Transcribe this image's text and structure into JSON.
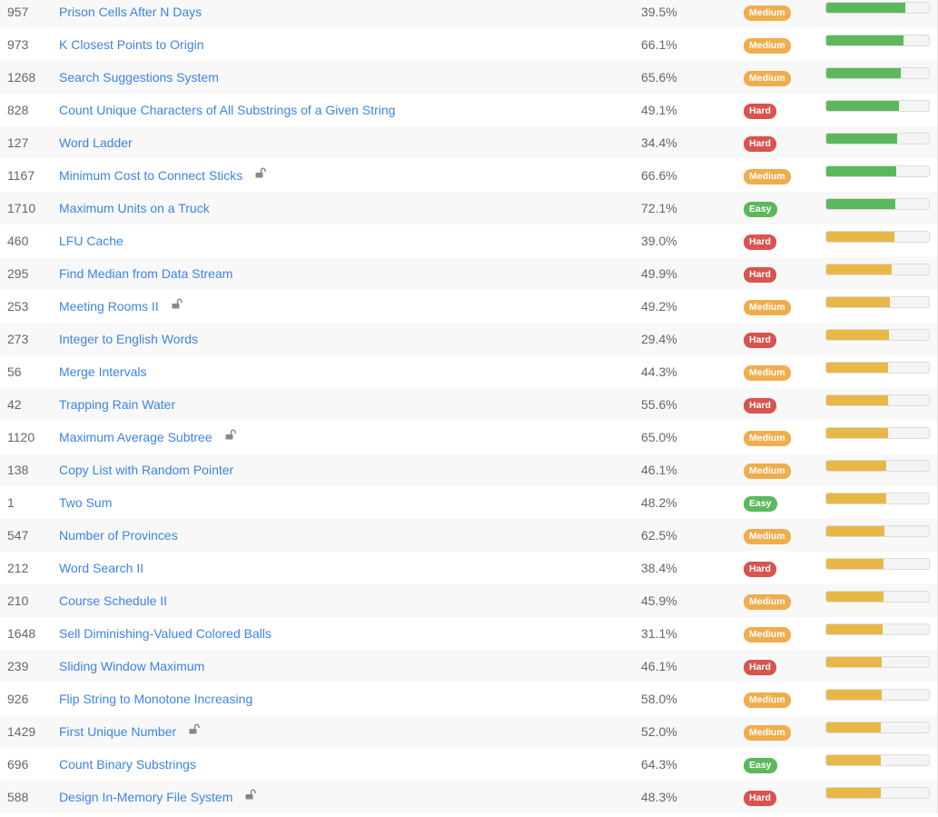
{
  "colors": {
    "easy": "#5cb85c",
    "medium": "#f0ad4e",
    "hard": "#d9534f",
    "freq_high": "#5cb85c",
    "freq_mid": "#e8b847"
  },
  "rows": [
    {
      "id": "957",
      "title": "Prison Cells After N Days",
      "locked": false,
      "acceptance": "39.5%",
      "difficulty": "Medium",
      "frequency": 0.77,
      "freq_color": "freq_high"
    },
    {
      "id": "973",
      "title": "K Closest Points to Origin",
      "locked": false,
      "acceptance": "66.1%",
      "difficulty": "Medium",
      "frequency": 0.75,
      "freq_color": "freq_high"
    },
    {
      "id": "1268",
      "title": "Search Suggestions System",
      "locked": false,
      "acceptance": "65.6%",
      "difficulty": "Medium",
      "frequency": 0.73,
      "freq_color": "freq_high"
    },
    {
      "id": "828",
      "title": "Count Unique Characters of All Substrings of a Given String",
      "locked": false,
      "acceptance": "49.1%",
      "difficulty": "Hard",
      "frequency": 0.71,
      "freq_color": "freq_high"
    },
    {
      "id": "127",
      "title": "Word Ladder",
      "locked": false,
      "acceptance": "34.4%",
      "difficulty": "Hard",
      "frequency": 0.69,
      "freq_color": "freq_high"
    },
    {
      "id": "1167",
      "title": "Minimum Cost to Connect Sticks",
      "locked": true,
      "acceptance": "66.6%",
      "difficulty": "Medium",
      "frequency": 0.68,
      "freq_color": "freq_high"
    },
    {
      "id": "1710",
      "title": "Maximum Units on a Truck",
      "locked": false,
      "acceptance": "72.1%",
      "difficulty": "Easy",
      "frequency": 0.67,
      "freq_color": "freq_high"
    },
    {
      "id": "460",
      "title": "LFU Cache",
      "locked": false,
      "acceptance": "39.0%",
      "difficulty": "Hard",
      "frequency": 0.66,
      "freq_color": "freq_mid"
    },
    {
      "id": "295",
      "title": "Find Median from Data Stream",
      "locked": false,
      "acceptance": "49.9%",
      "difficulty": "Hard",
      "frequency": 0.64,
      "freq_color": "freq_mid"
    },
    {
      "id": "253",
      "title": "Meeting Rooms II",
      "locked": true,
      "acceptance": "49.2%",
      "difficulty": "Medium",
      "frequency": 0.62,
      "freq_color": "freq_mid"
    },
    {
      "id": "273",
      "title": "Integer to English Words",
      "locked": false,
      "acceptance": "29.4%",
      "difficulty": "Hard",
      "frequency": 0.61,
      "freq_color": "freq_mid"
    },
    {
      "id": "56",
      "title": "Merge Intervals",
      "locked": false,
      "acceptance": "44.3%",
      "difficulty": "Medium",
      "frequency": 0.6,
      "freq_color": "freq_mid"
    },
    {
      "id": "42",
      "title": "Trapping Rain Water",
      "locked": false,
      "acceptance": "55.6%",
      "difficulty": "Hard",
      "frequency": 0.6,
      "freq_color": "freq_mid"
    },
    {
      "id": "1120",
      "title": "Maximum Average Subtree",
      "locked": true,
      "acceptance": "65.0%",
      "difficulty": "Medium",
      "frequency": 0.6,
      "freq_color": "freq_mid"
    },
    {
      "id": "138",
      "title": "Copy List with Random Pointer",
      "locked": false,
      "acceptance": "46.1%",
      "difficulty": "Medium",
      "frequency": 0.58,
      "freq_color": "freq_mid"
    },
    {
      "id": "1",
      "title": "Two Sum",
      "locked": false,
      "acceptance": "48.2%",
      "difficulty": "Easy",
      "frequency": 0.58,
      "freq_color": "freq_mid"
    },
    {
      "id": "547",
      "title": "Number of Provinces",
      "locked": false,
      "acceptance": "62.5%",
      "difficulty": "Medium",
      "frequency": 0.57,
      "freq_color": "freq_mid"
    },
    {
      "id": "212",
      "title": "Word Search II",
      "locked": false,
      "acceptance": "38.4%",
      "difficulty": "Hard",
      "frequency": 0.56,
      "freq_color": "freq_mid"
    },
    {
      "id": "210",
      "title": "Course Schedule II",
      "locked": false,
      "acceptance": "45.9%",
      "difficulty": "Medium",
      "frequency": 0.56,
      "freq_color": "freq_mid"
    },
    {
      "id": "1648",
      "title": "Sell Diminishing-Valued Colored Balls",
      "locked": false,
      "acceptance": "31.1%",
      "difficulty": "Medium",
      "frequency": 0.55,
      "freq_color": "freq_mid"
    },
    {
      "id": "239",
      "title": "Sliding Window Maximum",
      "locked": false,
      "acceptance": "46.1%",
      "difficulty": "Hard",
      "frequency": 0.54,
      "freq_color": "freq_mid"
    },
    {
      "id": "926",
      "title": "Flip String to Monotone Increasing",
      "locked": false,
      "acceptance": "58.0%",
      "difficulty": "Medium",
      "frequency": 0.54,
      "freq_color": "freq_mid"
    },
    {
      "id": "1429",
      "title": "First Unique Number",
      "locked": true,
      "acceptance": "52.0%",
      "difficulty": "Medium",
      "frequency": 0.53,
      "freq_color": "freq_mid"
    },
    {
      "id": "696",
      "title": "Count Binary Substrings",
      "locked": false,
      "acceptance": "64.3%",
      "difficulty": "Easy",
      "frequency": 0.53,
      "freq_color": "freq_mid"
    },
    {
      "id": "588",
      "title": "Design In-Memory File System",
      "locked": true,
      "acceptance": "48.3%",
      "difficulty": "Hard",
      "frequency": 0.53,
      "freq_color": "freq_mid"
    }
  ]
}
